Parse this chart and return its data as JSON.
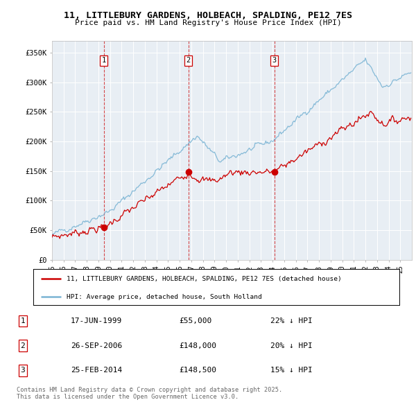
{
  "title": "11, LITTLEBURY GARDENS, HOLBEACH, SPALDING, PE12 7ES",
  "subtitle": "Price paid vs. HM Land Registry's House Price Index (HPI)",
  "ylabel_ticks": [
    "£0",
    "£50K",
    "£100K",
    "£150K",
    "£200K",
    "£250K",
    "£300K",
    "£350K"
  ],
  "ytick_values": [
    0,
    50000,
    100000,
    150000,
    200000,
    250000,
    300000,
    350000
  ],
  "ylim": [
    0,
    370000
  ],
  "xlim_start": 1995.0,
  "xlim_end": 2026.0,
  "sale_dates": [
    1999.46,
    2006.74,
    2014.15
  ],
  "sale_prices": [
    55000,
    148000,
    148500
  ],
  "sale_labels": [
    "1",
    "2",
    "3"
  ],
  "hpi_color": "#7ab4d4",
  "price_color": "#cc0000",
  "vline_color": "#cc0000",
  "legend_label_red": "11, LITTLEBURY GARDENS, HOLBEACH, SPALDING, PE12 7ES (detached house)",
  "legend_label_blue": "HPI: Average price, detached house, South Holland",
  "table_data": [
    [
      "1",
      "17-JUN-1999",
      "£55,000",
      "22% ↓ HPI"
    ],
    [
      "2",
      "26-SEP-2006",
      "£148,000",
      "20% ↓ HPI"
    ],
    [
      "3",
      "25-FEB-2014",
      "£148,500",
      "15% ↓ HPI"
    ]
  ],
  "footer": "Contains HM Land Registry data © Crown copyright and database right 2025.\nThis data is licensed under the Open Government Licence v3.0.",
  "background_color": "#ffffff",
  "plot_bg_color": "#e8eef4"
}
